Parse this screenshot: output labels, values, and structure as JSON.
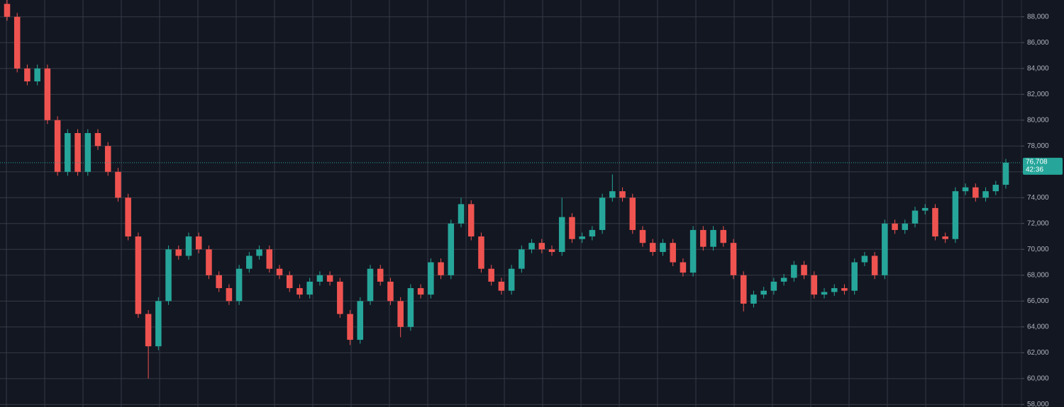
{
  "chart_data": {
    "type": "candlestick",
    "open": [
      89000,
      88000,
      84000,
      83000,
      84000,
      80000,
      76000,
      79000,
      76000,
      79000,
      78000,
      76000,
      74000,
      71000,
      65000,
      62500,
      66000,
      70000,
      69500,
      71000,
      70000,
      68000,
      67000,
      66000,
      68500,
      69500,
      70000,
      68500,
      68000,
      67000,
      66500,
      67500,
      68000,
      67500,
      65000,
      63000,
      66000,
      68500,
      67500,
      66000,
      64000,
      67000,
      66500,
      69000,
      68000,
      72000,
      73500,
      71000,
      68500,
      67500,
      66800,
      68500,
      70000,
      70500,
      70000,
      69800,
      72500,
      70800,
      71000,
      71500,
      74000,
      74500,
      74000,
      71500,
      70500,
      69800,
      70500,
      69000,
      68200,
      71500,
      70200,
      71500,
      70500,
      68000,
      65800,
      66500,
      66800,
      67500,
      67800,
      68800,
      68000,
      66500,
      66700,
      67000,
      66800,
      69000,
      69500,
      68000,
      72000,
      71500,
      72000,
      73000,
      73200,
      71000,
      70800,
      74500,
      74800,
      74000,
      74500,
      75000
    ],
    "high": [
      89300,
      88300,
      84300,
      84300,
      84300,
      80300,
      79300,
      79300,
      79300,
      79300,
      78300,
      76300,
      74300,
      71300,
      65300,
      66300,
      70300,
      70300,
      71300,
      71300,
      70300,
      68300,
      67300,
      68800,
      69800,
      70300,
      70300,
      68800,
      68300,
      67300,
      67800,
      68300,
      68300,
      67800,
      65300,
      66300,
      68800,
      68800,
      67800,
      66300,
      67300,
      67300,
      69300,
      69300,
      72300,
      74000,
      73800,
      71300,
      68800,
      67800,
      68800,
      70300,
      70800,
      70800,
      70300,
      74000,
      72800,
      71300,
      71800,
      74300,
      75800,
      74800,
      74300,
      71800,
      70800,
      70800,
      70800,
      69300,
      71800,
      71800,
      71800,
      71800,
      70800,
      68300,
      66800,
      67100,
      67800,
      68100,
      69100,
      69100,
      68300,
      67000,
      67300,
      67300,
      69300,
      69800,
      69800,
      72300,
      72300,
      72300,
      73300,
      73500,
      73500,
      71300,
      74800,
      75100,
      75100,
      74800,
      75300,
      77000
    ],
    "low": [
      87700,
      83700,
      82700,
      82700,
      79700,
      75700,
      75700,
      75700,
      75700,
      77700,
      75700,
      73700,
      70700,
      64700,
      60000,
      62200,
      65700,
      69200,
      69200,
      69700,
      67700,
      66700,
      65700,
      65700,
      68200,
      69200,
      68200,
      67700,
      66700,
      66200,
      66200,
      67200,
      67200,
      64700,
      62600,
      62700,
      65700,
      67200,
      65700,
      63200,
      63700,
      66200,
      66200,
      67700,
      67700,
      71700,
      70700,
      68200,
      67200,
      66500,
      66500,
      68200,
      69700,
      69700,
      69500,
      69500,
      70500,
      70500,
      70700,
      71200,
      73700,
      73700,
      71200,
      70200,
      69500,
      69500,
      68700,
      67900,
      67900,
      69900,
      69900,
      70200,
      67700,
      65200,
      65500,
      66200,
      66500,
      67200,
      67500,
      67700,
      66200,
      66200,
      66400,
      66500,
      66500,
      68700,
      67700,
      67700,
      71200,
      71200,
      71700,
      72700,
      70700,
      70500,
      70500,
      74200,
      73700,
      73700,
      74200,
      74700
    ],
    "close": [
      88000,
      84000,
      83000,
      84000,
      80000,
      76000,
      79000,
      76000,
      79000,
      78000,
      76000,
      74000,
      71000,
      65000,
      62500,
      66000,
      70000,
      69500,
      71000,
      70000,
      68000,
      67000,
      66000,
      68500,
      69500,
      70000,
      68500,
      68000,
      67000,
      66500,
      67500,
      68000,
      67500,
      65000,
      63000,
      66000,
      68500,
      67500,
      66000,
      64000,
      67000,
      66500,
      69000,
      68000,
      72000,
      73500,
      71000,
      68500,
      67500,
      66800,
      68500,
      70000,
      70500,
      70000,
      69800,
      72500,
      70800,
      71000,
      71500,
      74000,
      74500,
      74000,
      71500,
      70500,
      69800,
      70500,
      69000,
      68200,
      71500,
      70200,
      71500,
      70500,
      68000,
      65800,
      66500,
      66800,
      67500,
      67800,
      68800,
      68000,
      66500,
      66700,
      67000,
      66800,
      69000,
      69500,
      68000,
      72000,
      71500,
      72000,
      73000,
      73200,
      71000,
      70800,
      74500,
      74800,
      74000,
      74500,
      75000,
      76708
    ],
    "up_color": "#26a69a",
    "down_color": "#ef5350",
    "ylim": [
      57800,
      89300
    ],
    "yticks": [
      {
        "value": 58000,
        "label": "58,000"
      },
      {
        "value": 60000,
        "label": "60,000"
      },
      {
        "value": 62000,
        "label": "62,000"
      },
      {
        "value": 64000,
        "label": "64,000"
      },
      {
        "value": 66000,
        "label": "66,000"
      },
      {
        "value": 68000,
        "label": "68,000"
      },
      {
        "value": 70000,
        "label": "70,000"
      },
      {
        "value": 72000,
        "label": "72,000"
      },
      {
        "value": 74000,
        "label": "74,000"
      },
      {
        "value": 76000,
        "label": "76,000"
      },
      {
        "value": 78000,
        "label": "78,000"
      },
      {
        "value": 80000,
        "label": "80,000"
      },
      {
        "value": 82000,
        "label": "82,000"
      },
      {
        "value": 84000,
        "label": "84,000"
      },
      {
        "value": 86000,
        "label": "86,000"
      },
      {
        "value": 88000,
        "label": "88,000"
      }
    ],
    "grid": true,
    "last_price": {
      "value": 76708,
      "label": "76,708"
    },
    "countdown": "42:36"
  }
}
